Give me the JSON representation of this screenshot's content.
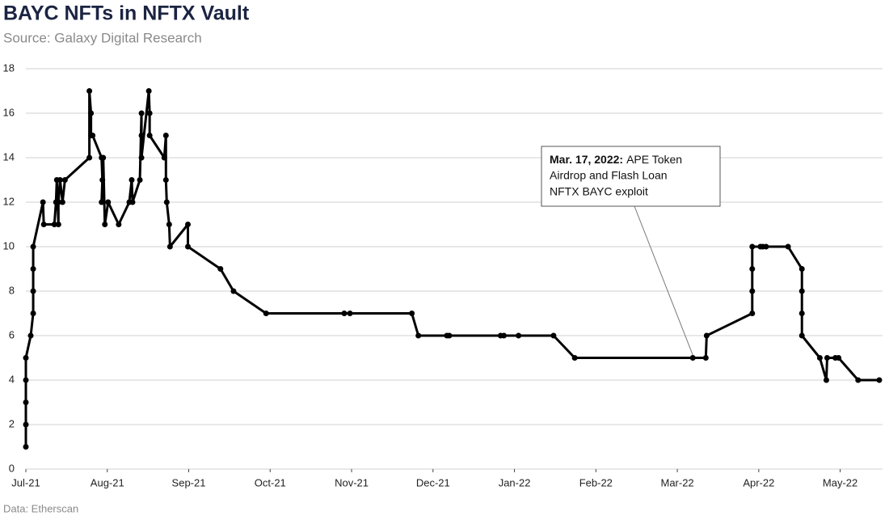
{
  "chart_data": {
    "type": "line",
    "title": "BAYC NFTs in NFTX Vault",
    "subtitle": "Source: Galaxy Digital Research",
    "footer": "Data: Etherscan",
    "color": "#000000",
    "grid": true,
    "xlim": [
      0,
      10.52
    ],
    "xticks": [
      {
        "value": 0,
        "label": "Jul-21"
      },
      {
        "value": 1,
        "label": "Aug-21"
      },
      {
        "value": 2,
        "label": "Sep-21"
      },
      {
        "value": 3,
        "label": "Oct-21"
      },
      {
        "value": 4,
        "label": "Nov-21"
      },
      {
        "value": 5,
        "label": "Dec-21"
      },
      {
        "value": 6,
        "label": "Jan-22"
      },
      {
        "value": 7,
        "label": "Feb-22"
      },
      {
        "value": 8,
        "label": "Mar-22"
      },
      {
        "value": 9,
        "label": "Apr-22"
      },
      {
        "value": 10,
        "label": "May-22"
      }
    ],
    "ylim": [
      0,
      18
    ],
    "yticks": [
      0,
      2,
      4,
      6,
      8,
      10,
      12,
      14,
      16,
      18
    ],
    "x": [
      0,
      0,
      0,
      0,
      0,
      0.06,
      0.09,
      0.09,
      0.09,
      0.09,
      0.21,
      0.22,
      0.35,
      0.37,
      0.38,
      0.4,
      0.4,
      0.42,
      0.45,
      0.48,
      0.78,
      0.78,
      0.8,
      0.8,
      0.82,
      0.93,
      0.94,
      0.93,
      0.95,
      0.97,
      1.01,
      1.14,
      1.27,
      1.3,
      1.31,
      1.4,
      1.42,
      1.42,
      1.42,
      1.51,
      1.52,
      1.52,
      1.7,
      1.72,
      1.72,
      1.73,
      1.76,
      1.77,
      1.99,
      1.99,
      2.39,
      2.55,
      2.95,
      3.91,
      3.98,
      4.74,
      4.82,
      5.17,
      5.2,
      5.83,
      5.87,
      6.05,
      6.48,
      6.74,
      8.19,
      8.35,
      8.36,
      8.92,
      8.92,
      8.92,
      8.92,
      9.02,
      9.05,
      9.09,
      9.36,
      9.53,
      9.53,
      9.53,
      9.53,
      9.75,
      9.83,
      9.84,
      9.94,
      9.98,
      10.22,
      10.48
    ],
    "values": [
      1,
      2,
      3,
      4,
      5,
      6,
      7,
      8,
      9,
      10,
      12,
      11,
      11,
      12,
      13,
      11,
      12,
      13,
      12,
      13,
      14,
      17,
      16,
      15,
      15,
      14,
      13,
      12,
      14,
      11,
      12,
      11,
      12,
      13,
      12,
      13,
      16,
      15,
      14,
      17,
      16,
      15,
      14,
      15,
      13,
      12,
      11,
      10,
      11,
      10,
      9,
      8,
      7,
      7,
      7,
      7,
      6,
      6,
      6,
      6,
      6,
      6,
      6,
      5,
      5,
      5,
      6,
      7,
      8,
      9,
      10,
      10,
      10,
      10,
      10,
      9,
      8,
      7,
      6,
      5,
      4,
      5,
      5,
      5,
      4,
      4
    ],
    "annotation": {
      "bold": "Mar. 17, 2022:",
      "lines": [
        "APE Token",
        "Airdrop and Flash Loan",
        "NFTX BAYC exploit"
      ]
    }
  }
}
